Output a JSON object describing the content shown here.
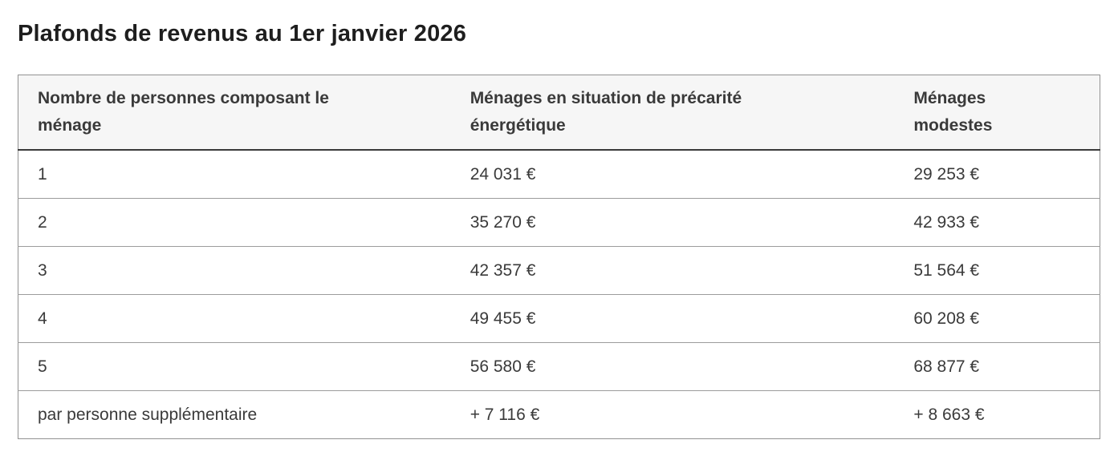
{
  "page": {
    "title": "Plafonds de revenus au 1er janvier 2026"
  },
  "table": {
    "columns": [
      "Nombre de personnes composant le ménage",
      "Ménages en situation de précarité énergétique",
      "Ménages modestes"
    ],
    "rows": [
      [
        "1",
        "24 031 €",
        "29 253 €"
      ],
      [
        "2",
        "35 270 €",
        "42 933 €"
      ],
      [
        "3",
        "42 357 €",
        "51 564 €"
      ],
      [
        "4",
        "49 455 €",
        "60 208 €"
      ],
      [
        "5",
        "56 580 €",
        "68 877 €"
      ],
      [
        "par personne supplémentaire",
        "+ 7 116 €",
        "+ 8 663 €"
      ]
    ]
  },
  "colors": {
    "title_text": "#1e1e1e",
    "body_text": "#3a3a3a",
    "header_background": "#f6f6f6",
    "table_outer_border": "#929292",
    "header_bottom_border": "#3a3a3a",
    "row_divider": "#9c9c9c",
    "page_background": "#ffffff"
  }
}
